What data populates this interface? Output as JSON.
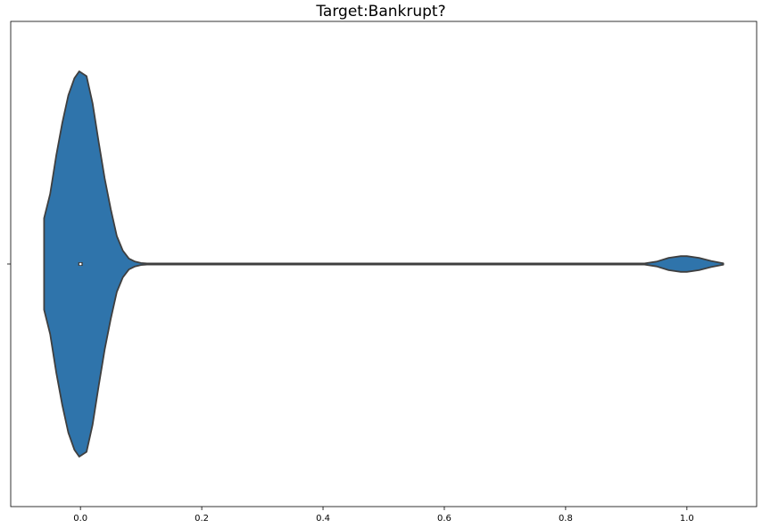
{
  "chart_data": {
    "type": "violin",
    "title": "Target:Bankrupt?",
    "xlabel": "",
    "ylabel": "",
    "xlim": [
      -0.115,
      1.115
    ],
    "xticks": [
      0.0,
      0.2,
      0.4,
      0.6,
      0.8,
      1.0
    ],
    "xtick_labels": [
      "0.0",
      "0.2",
      "0.4",
      "0.6",
      "0.8",
      "1.0"
    ],
    "yticks": [
      ""
    ],
    "grid": false,
    "fill_color": "#2f74ab",
    "edge_color": "#3f3f3f",
    "median": 0.0,
    "density": {
      "x": [
        -0.06,
        -0.05,
        -0.04,
        -0.03,
        -0.02,
        -0.01,
        -0.002,
        0.01,
        0.02,
        0.03,
        0.04,
        0.05,
        0.06,
        0.07,
        0.08,
        0.09,
        0.1,
        0.11,
        0.12,
        0.15,
        0.2,
        0.4,
        0.6,
        0.8,
        0.9,
        0.93,
        0.95,
        0.97,
        0.99,
        1.0,
        1.02,
        1.04,
        1.06
      ],
      "half_width": [
        0.134,
        0.205,
        0.317,
        0.413,
        0.494,
        0.544,
        0.564,
        0.55,
        0.47,
        0.357,
        0.251,
        0.161,
        0.082,
        0.039,
        0.016,
        0.007,
        0.003,
        0.001,
        0.0,
        0.0,
        0.0,
        0.0,
        0.0,
        0.0,
        0.0,
        0.001,
        0.007,
        0.018,
        0.023,
        0.023,
        0.018,
        0.009,
        0.002
      ]
    }
  }
}
